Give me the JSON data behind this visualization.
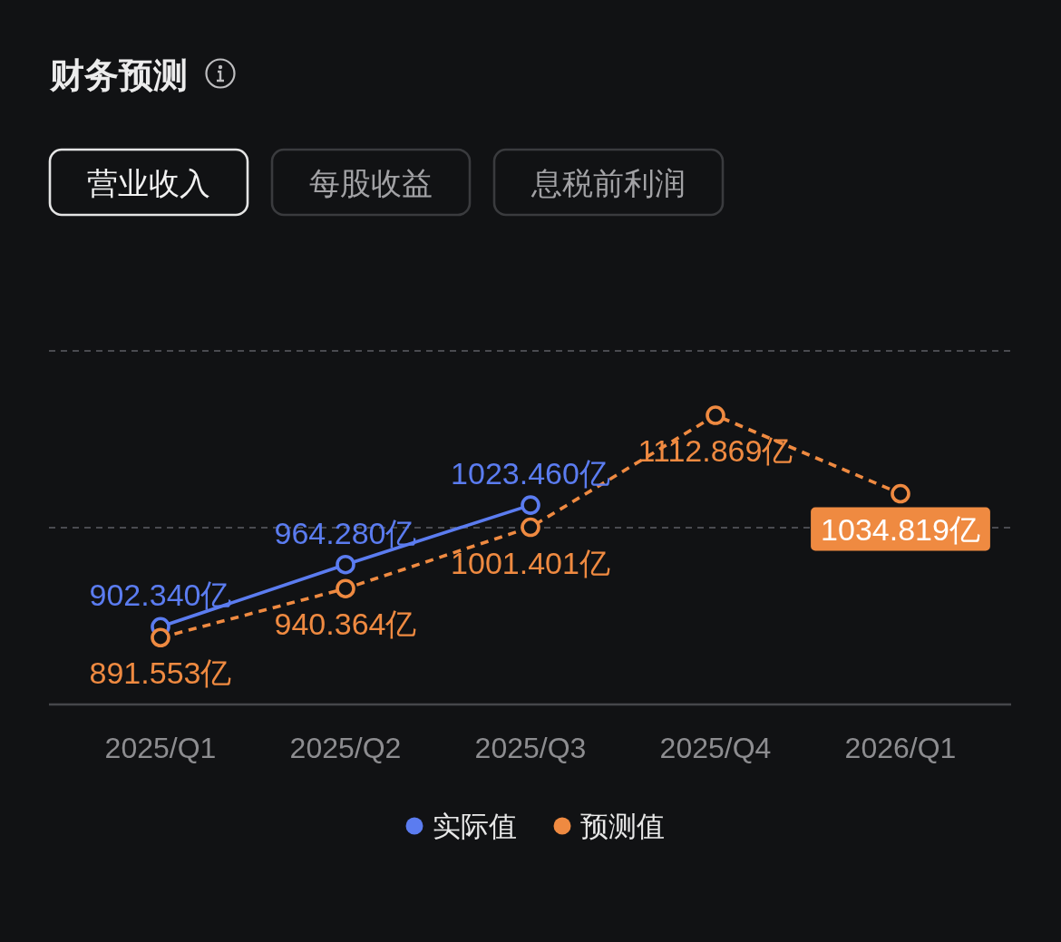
{
  "chart_data": {
    "type": "line",
    "title": "财务预测",
    "annotations": [
      "营业收入",
      "每股收益",
      "息税前利润"
    ],
    "categories": [
      "2025/Q1",
      "2025/Q2",
      "2025/Q3",
      "2025/Q4",
      "2026/Q1"
    ],
    "series": [
      {
        "name": "实际值",
        "color": "#5b7cf0",
        "line_style": "solid",
        "values": [
          902.34,
          964.28,
          1023.46,
          null,
          null
        ],
        "value_labels": [
          "902.340亿",
          "964.280亿",
          "1023.460亿",
          null,
          null
        ]
      },
      {
        "name": "预测值",
        "color": "#ef8a41",
        "line_style": "dashed",
        "values": [
          891.553,
          940.364,
          1001.401,
          1112.869,
          1034.819
        ],
        "value_labels": [
          "891.553亿",
          "940.364亿",
          "1001.401亿",
          "1112.869亿",
          "1034.819亿"
        ]
      }
    ],
    "ylim": [
      825,
      1177
    ],
    "ref_lines": [
      {
        "axis": "y",
        "value": 1001,
        "color": "#4a4b50",
        "line_style": "dashed"
      },
      {
        "axis": "y",
        "value": 1177,
        "color": "#4a4b50",
        "line_style": "dashed"
      }
    ],
    "tick_labels": "x",
    "legend": "bottom",
    "marker": "circle"
  }
}
